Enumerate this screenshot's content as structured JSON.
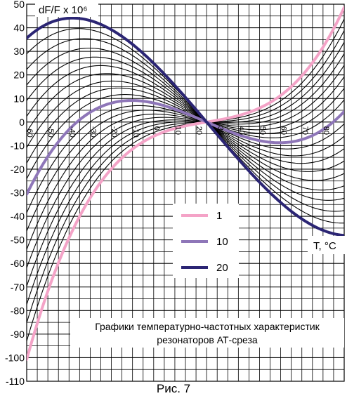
{
  "chart_data": {
    "type": "line",
    "ylabel": "dF/F x 10⁶",
    "xlabel": "T, °C",
    "ylim": [
      -110,
      50
    ],
    "xlim": [
      -60,
      90
    ],
    "yticks": [
      "50",
      "40",
      "30",
      "20",
      "10",
      "0",
      "-10",
      "-20",
      "-30",
      "-40",
      "-50",
      "-60",
      "-70",
      "-80",
      "-90",
      "-100",
      "-110"
    ],
    "xticks": [
      "-60",
      "-50",
      "-40",
      "-30",
      "-20",
      "-10",
      "0",
      "10",
      "20",
      "30",
      "40",
      "50",
      "60",
      "70",
      "80"
    ],
    "grid": true,
    "annotation": "Графики температурно-частотных характеристик резонаторов АТ-среза",
    "caption": "Рис. 7",
    "legend_position": "center-right",
    "family": {
      "description_values": "cubic curves through (25, 0); family index k from 1 to 20",
      "x": [
        -60,
        -50,
        -40,
        -30,
        -20,
        -10,
        0,
        10,
        20,
        25,
        30,
        40,
        50,
        60,
        70,
        80,
        90
      ],
      "curves": [
        {
          "k": 1,
          "values": [
            -100,
            -72,
            -50,
            -33,
            -20,
            -11,
            -5,
            -2,
            -0.4,
            0,
            0.5,
            2,
            5,
            11,
            20,
            33,
            48
          ]
        },
        {
          "k": 10,
          "values": [
            -38,
            -10,
            3,
            7.5,
            8,
            6.5,
            4.5,
            2.5,
            0.8,
            0,
            -1,
            -3,
            -5,
            -6.5,
            -6,
            -3.5,
            2
          ]
        },
        {
          "k": 20,
          "values": [
            34,
            42,
            46,
            45,
            40,
            32,
            22,
            12,
            4,
            0,
            -4,
            -13,
            -24,
            -35,
            -43,
            -47,
            -47
          ]
        }
      ]
    },
    "series": [
      {
        "name": "1",
        "color": "#f4a3c7",
        "values": [
          -100,
          -72,
          -50,
          -33,
          -20,
          -11,
          -5,
          -2,
          -0.4,
          0,
          0.5,
          2,
          5,
          11,
          20,
          33,
          48
        ]
      },
      {
        "name": "10",
        "color": "#8e76b8",
        "values": [
          -38,
          -10,
          3,
          7.5,
          8,
          6.5,
          4.5,
          2.5,
          0.8,
          0,
          -1,
          -3,
          -5,
          -6.5,
          -6,
          -3.5,
          2
        ]
      },
      {
        "name": "20",
        "color": "#2b2574",
        "values": [
          34,
          42,
          46,
          45,
          40,
          32,
          22,
          12,
          4,
          0,
          -4,
          -13,
          -24,
          -35,
          -43,
          -47,
          -47
        ]
      }
    ]
  }
}
